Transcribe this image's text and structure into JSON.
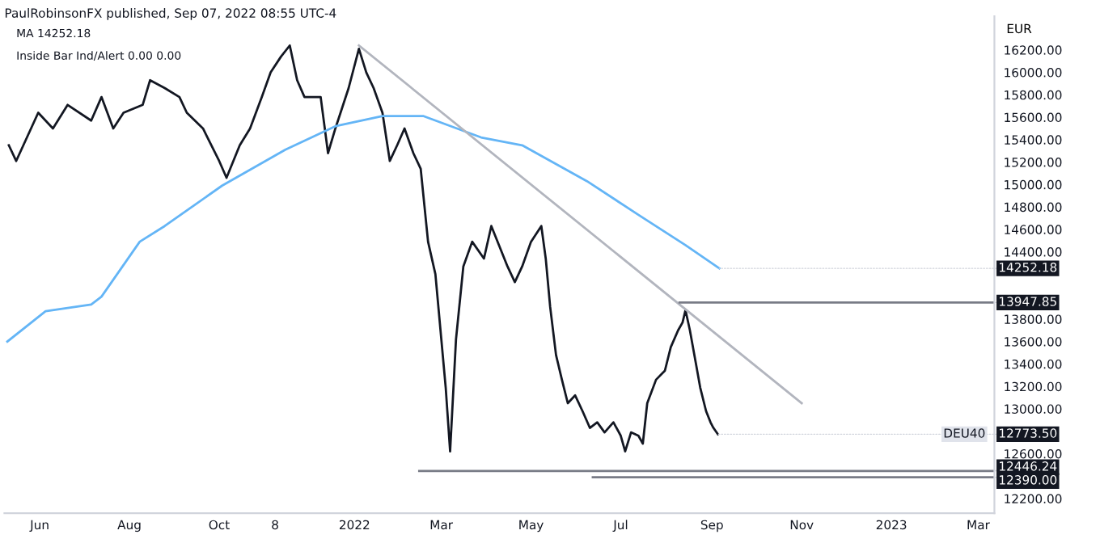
{
  "chart_data": {
    "type": "line",
    "title": "PaulRobinsonFX published, Sep 07, 2022 08:55 UTC-4",
    "ylabel": "EUR",
    "xlim": [
      "2021-05-08",
      "2023-03-12"
    ],
    "xticks": [
      {
        "value": "2021-06-01",
        "label": "Jun"
      },
      {
        "value": "2021-08-01",
        "label": "Aug"
      },
      {
        "value": "2021-10-01",
        "label": "Oct"
      },
      {
        "value": "2021-11-08",
        "label": "8"
      },
      {
        "value": "2022-01-01",
        "label": "2022"
      },
      {
        "value": "2022-03-01",
        "label": "Mar"
      },
      {
        "value": "2022-05-01",
        "label": "May"
      },
      {
        "value": "2022-07-01",
        "label": "Jul"
      },
      {
        "value": "2022-09-01",
        "label": "Sep"
      },
      {
        "value": "2022-11-01",
        "label": "Nov"
      },
      {
        "value": "2023-01-01",
        "label": "2023"
      },
      {
        "value": "2023-03-01",
        "label": "Mar"
      }
    ],
    "ylim": [
      12070,
      16500
    ],
    "yticks": [
      {
        "value": 12200,
        "label": "12200.00"
      },
      {
        "value": 12600,
        "label": "12600.00"
      },
      {
        "value": 13000,
        "label": "13000.00"
      },
      {
        "value": 13200,
        "label": "13200.00"
      },
      {
        "value": 13400,
        "label": "13400.00"
      },
      {
        "value": 13600,
        "label": "13600.00"
      },
      {
        "value": 13800,
        "label": "13800.00"
      },
      {
        "value": 14400,
        "label": "14400.00"
      },
      {
        "value": 14600,
        "label": "14600.00"
      },
      {
        "value": 14800,
        "label": "14800.00"
      },
      {
        "value": 15000,
        "label": "15000.00"
      },
      {
        "value": 15200,
        "label": "15200.00"
      },
      {
        "value": 15400,
        "label": "15400.00"
      },
      {
        "value": 15600,
        "label": "15600.00"
      },
      {
        "value": 15800,
        "label": "15800.00"
      },
      {
        "value": 16000,
        "label": "16000.00"
      },
      {
        "value": 16200,
        "label": "16200.00"
      }
    ],
    "grid": false,
    "series": [
      {
        "name": "DEU40",
        "color": "#131722",
        "x": [
          "2021-05-11",
          "2021-05-16",
          "2021-05-31",
          "2021-06-10",
          "2021-06-20",
          "2021-07-06",
          "2021-07-13",
          "2021-07-21",
          "2021-07-28",
          "2021-08-10",
          "2021-08-15",
          "2021-08-25",
          "2021-09-04",
          "2021-09-09",
          "2021-09-20",
          "2021-10-01",
          "2021-10-06",
          "2021-10-15",
          "2021-10-22",
          "2021-10-30",
          "2021-11-05",
          "2021-11-12",
          "2021-11-18",
          "2021-11-23",
          "2021-11-28",
          "2021-12-09",
          "2021-12-14",
          "2021-12-19",
          "2021-12-28",
          "2022-01-04",
          "2022-01-09",
          "2022-01-14",
          "2022-01-20",
          "2022-01-25",
          "2022-01-30",
          "2022-02-04",
          "2022-02-10",
          "2022-02-15",
          "2022-02-20",
          "2022-02-25",
          "2022-03-04",
          "2022-03-07",
          "2022-03-11",
          "2022-03-16",
          "2022-03-22",
          "2022-03-30",
          "2022-04-04",
          "2022-04-15",
          "2022-04-20",
          "2022-04-25",
          "2022-05-01",
          "2022-05-08",
          "2022-05-11",
          "2022-05-14",
          "2022-05-18",
          "2022-05-22",
          "2022-05-26",
          "2022-05-31",
          "2022-06-05",
          "2022-06-10",
          "2022-06-15",
          "2022-06-20",
          "2022-06-26",
          "2022-07-01",
          "2022-07-04",
          "2022-07-08",
          "2022-07-13",
          "2022-07-16",
          "2022-07-19",
          "2022-07-25",
          "2022-07-31",
          "2022-08-04",
          "2022-08-09",
          "2022-08-12",
          "2022-08-14",
          "2022-08-17",
          "2022-08-21",
          "2022-08-24",
          "2022-08-28",
          "2022-08-31",
          "2022-09-02",
          "2022-09-05"
        ],
        "values": [
          15350,
          15210,
          15640,
          15500,
          15710,
          15570,
          15780,
          15500,
          15640,
          15710,
          15930,
          15860,
          15780,
          15640,
          15500,
          15210,
          15060,
          15350,
          15500,
          15780,
          16000,
          16140,
          16240,
          15930,
          15780,
          15780,
          15280,
          15500,
          15860,
          16210,
          16000,
          15860,
          15640,
          15210,
          15350,
          15500,
          15280,
          15140,
          14490,
          14200,
          13190,
          12620,
          13620,
          14270,
          14490,
          14340,
          14630,
          14270,
          14130,
          14270,
          14490,
          14630,
          14340,
          13910,
          13480,
          13260,
          13050,
          13120,
          12980,
          12830,
          12880,
          12790,
          12880,
          12760,
          12620,
          12790,
          12760,
          12690,
          13050,
          13260,
          13340,
          13550,
          13700,
          13770,
          13880,
          13700,
          13410,
          13190,
          12980,
          12880,
          12830,
          12773.5
        ]
      },
      {
        "color": "#64b5f6",
        "x": [
          "2021-05-10",
          "2021-06-05",
          "2021-07-06",
          "2021-07-13",
          "2021-08-08",
          "2021-08-25",
          "2021-10-03",
          "2021-11-15",
          "2021-12-19",
          "2022-01-20",
          "2022-02-17",
          "2022-03-28",
          "2022-04-25",
          "2022-06-08",
          "2022-07-13",
          "2022-08-14",
          "2022-09-06"
        ],
        "values": [
          13600,
          13870,
          13930,
          14000,
          14490,
          14630,
          14990,
          15310,
          15520,
          15610,
          15610,
          15420,
          15350,
          15030,
          14730,
          14460,
          14252.18
        ]
      },
      {
        "color": "#b2b5be",
        "x": [
          "2022-01-04",
          "2022-11-01"
        ],
        "values": [
          16240,
          13050
        ]
      },
      {
        "color": "#787b86",
        "x": [
          "2022-08-10",
          "2023-03-12"
        ],
        "values": [
          13947.85,
          13947.85
        ]
      },
      {
        "color": "#787b86",
        "x": [
          "2022-02-14",
          "2023-03-12"
        ],
        "values": [
          12446.24,
          12446.24
        ]
      },
      {
        "color": "#787b86",
        "x": [
          "2022-06-12",
          "2023-03-12"
        ],
        "values": [
          12390.0,
          12390.0
        ]
      }
    ],
    "annotations": [
      "MA 14252.18",
      "Inside Bar Ind/Alert 0.00 0.00",
      {
        "text": "14252.18",
        "x": "2022-09-06",
        "y": 14252.18
      },
      {
        "text": "13947.85",
        "x": "2023-03-12",
        "y": 13947.85
      },
      {
        "text": "12773.50",
        "x": "2022-09-05",
        "y": 12773.5
      },
      {
        "text": "12446.24",
        "x": "2023-03-12",
        "y": 12446.24
      },
      {
        "text": "12390.00",
        "x": "2023-03-12",
        "y": 12390.0
      }
    ]
  }
}
